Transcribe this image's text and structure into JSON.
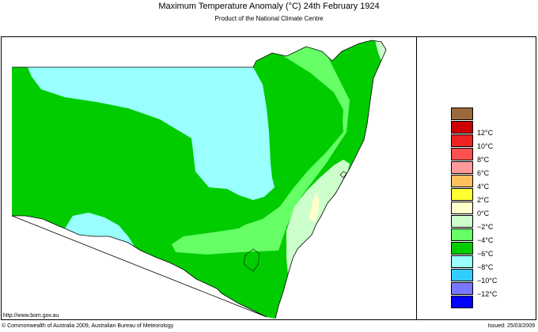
{
  "header": {
    "title": "Maximum Temperature Anomaly (°C)  24th February 1924",
    "subtitle": "Product of the National Climate Centre"
  },
  "legend": {
    "items": [
      {
        "label": "",
        "color": "#9b6a3c"
      },
      {
        "label": "12°C",
        "color": "#cc0000"
      },
      {
        "label": "10°C",
        "color": "#ee2222"
      },
      {
        "label": "8°C",
        "color": "#ff5050"
      },
      {
        "label": "6°C",
        "color": "#ff9a9a"
      },
      {
        "label": "4°C",
        "color": "#ffc060"
      },
      {
        "label": "2°C",
        "color": "#ffff33"
      },
      {
        "label": "0°C",
        "color": "#ffffcc"
      },
      {
        "label": "−2°C",
        "color": "#ccffcc"
      },
      {
        "label": "−4°C",
        "color": "#66ff66"
      },
      {
        "label": "−6°C",
        "color": "#00cc00"
      },
      {
        "label": "−8°C",
        "color": "#99ffff"
      },
      {
        "label": "−10°C",
        "color": "#33ccff"
      },
      {
        "label": "−12°C",
        "color": "#7777ff"
      },
      {
        "label": "",
        "color": "#0000ff"
      }
    ]
  },
  "map": {
    "region_colors": {
      "minus_2": "#ccffcc",
      "minus_4": "#66ff66",
      "minus_6": "#00cc00",
      "minus_8": "#99ffff",
      "zero": "#ffffcc",
      "outline": "#000000"
    }
  },
  "footer": {
    "website": "http://www.bom.gov.au",
    "copyright": "© Commonwealth of Australia 2009, Australian Bureau of Meteorology",
    "issued": "Issued: 25/03/2009"
  }
}
